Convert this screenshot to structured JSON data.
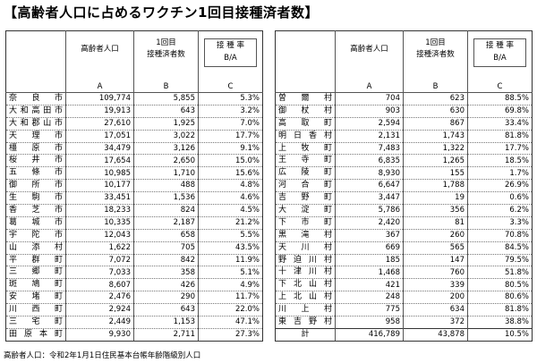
{
  "title": "【高齢者人口に占めるワクチン1回目接種済者数】",
  "headers": {
    "population": "高齢者人口",
    "population_letter": "A",
    "vaccinated_line1": "1回目",
    "vaccinated_line2": "接種済者数",
    "vaccinated_letter": "B",
    "rate_line1": "接 種 率",
    "rate_line2": "B/A",
    "rate_letter": "C"
  },
  "left_rows": [
    {
      "name": "奈良市",
      "population": "109,774",
      "vaccinated": "5,855",
      "rate": "5.3%"
    },
    {
      "name": "大和高田市",
      "population": "19,913",
      "vaccinated": "643",
      "rate": "3.2%"
    },
    {
      "name": "大和郡山市",
      "population": "27,610",
      "vaccinated": "1,925",
      "rate": "7.0%"
    },
    {
      "name": "天理市",
      "population": "17,051",
      "vaccinated": "3,022",
      "rate": "17.7%"
    },
    {
      "name": "橿原市",
      "population": "34,479",
      "vaccinated": "3,126",
      "rate": "9.1%"
    },
    {
      "name": "桜井市",
      "population": "17,654",
      "vaccinated": "2,650",
      "rate": "15.0%"
    },
    {
      "name": "五條市",
      "population": "10,985",
      "vaccinated": "1,710",
      "rate": "15.6%"
    },
    {
      "name": "御所市",
      "population": "10,177",
      "vaccinated": "488",
      "rate": "4.8%"
    },
    {
      "name": "生駒市",
      "population": "33,451",
      "vaccinated": "1,536",
      "rate": "4.6%"
    },
    {
      "name": "香芝市",
      "population": "18,233",
      "vaccinated": "824",
      "rate": "4.5%"
    },
    {
      "name": "葛城市",
      "population": "10,335",
      "vaccinated": "2,187",
      "rate": "21.2%"
    },
    {
      "name": "宇陀市",
      "population": "12,043",
      "vaccinated": "658",
      "rate": "5.5%"
    },
    {
      "name": "山添村",
      "population": "1,622",
      "vaccinated": "705",
      "rate": "43.5%"
    },
    {
      "name": "平群町",
      "population": "7,072",
      "vaccinated": "842",
      "rate": "11.9%"
    },
    {
      "name": "三郷町",
      "population": "7,033",
      "vaccinated": "358",
      "rate": "5.1%"
    },
    {
      "name": "斑鳩町",
      "population": "8,607",
      "vaccinated": "426",
      "rate": "4.9%"
    },
    {
      "name": "安堵町",
      "population": "2,476",
      "vaccinated": "290",
      "rate": "11.7%"
    },
    {
      "name": "川西町",
      "population": "2,924",
      "vaccinated": "643",
      "rate": "22.0%"
    },
    {
      "name": "三宅町",
      "population": "2,449",
      "vaccinated": "1,153",
      "rate": "47.1%"
    },
    {
      "name": "田原本町",
      "population": "9,930",
      "vaccinated": "2,711",
      "rate": "27.3%"
    }
  ],
  "right_rows": [
    {
      "name": "曽爾村",
      "population": "704",
      "vaccinated": "623",
      "rate": "88.5%"
    },
    {
      "name": "御杖村",
      "population": "903",
      "vaccinated": "630",
      "rate": "69.8%"
    },
    {
      "name": "高取町",
      "population": "2,594",
      "vaccinated": "867",
      "rate": "33.4%"
    },
    {
      "name": "明日香村",
      "population": "2,131",
      "vaccinated": "1,743",
      "rate": "81.8%"
    },
    {
      "name": "上牧町",
      "population": "7,483",
      "vaccinated": "1,322",
      "rate": "17.7%"
    },
    {
      "name": "王寺町",
      "population": "6,835",
      "vaccinated": "1,265",
      "rate": "18.5%"
    },
    {
      "name": "広陵町",
      "population": "8,930",
      "vaccinated": "155",
      "rate": "1.7%"
    },
    {
      "name": "河合町",
      "population": "6,647",
      "vaccinated": "1,788",
      "rate": "26.9%"
    },
    {
      "name": "吉野町",
      "population": "3,447",
      "vaccinated": "19",
      "rate": "0.6%"
    },
    {
      "name": "大淀町",
      "population": "5,786",
      "vaccinated": "356",
      "rate": "6.2%"
    },
    {
      "name": "下市町",
      "population": "2,420",
      "vaccinated": "81",
      "rate": "3.3%"
    },
    {
      "name": "黒滝村",
      "population": "367",
      "vaccinated": "260",
      "rate": "70.8%"
    },
    {
      "name": "天川村",
      "population": "669",
      "vaccinated": "565",
      "rate": "84.5%"
    },
    {
      "name": "野迫川村",
      "population": "185",
      "vaccinated": "147",
      "rate": "79.5%"
    },
    {
      "name": "十津川村",
      "population": "1,468",
      "vaccinated": "760",
      "rate": "51.8%"
    },
    {
      "name": "下北山村",
      "population": "421",
      "vaccinated": "339",
      "rate": "80.5%"
    },
    {
      "name": "上北山村",
      "population": "248",
      "vaccinated": "200",
      "rate": "80.6%"
    },
    {
      "name": "川上村",
      "population": "775",
      "vaccinated": "634",
      "rate": "81.8%"
    },
    {
      "name": "東吉野村",
      "population": "958",
      "vaccinated": "372",
      "rate": "38.8%"
    },
    {
      "name": "計",
      "population": "416,789",
      "vaccinated": "43,878",
      "rate": "10.5%"
    }
  ],
  "footnote": "高齢者人口：令和2年1月1日住民基本台帳年齢階級別人口"
}
